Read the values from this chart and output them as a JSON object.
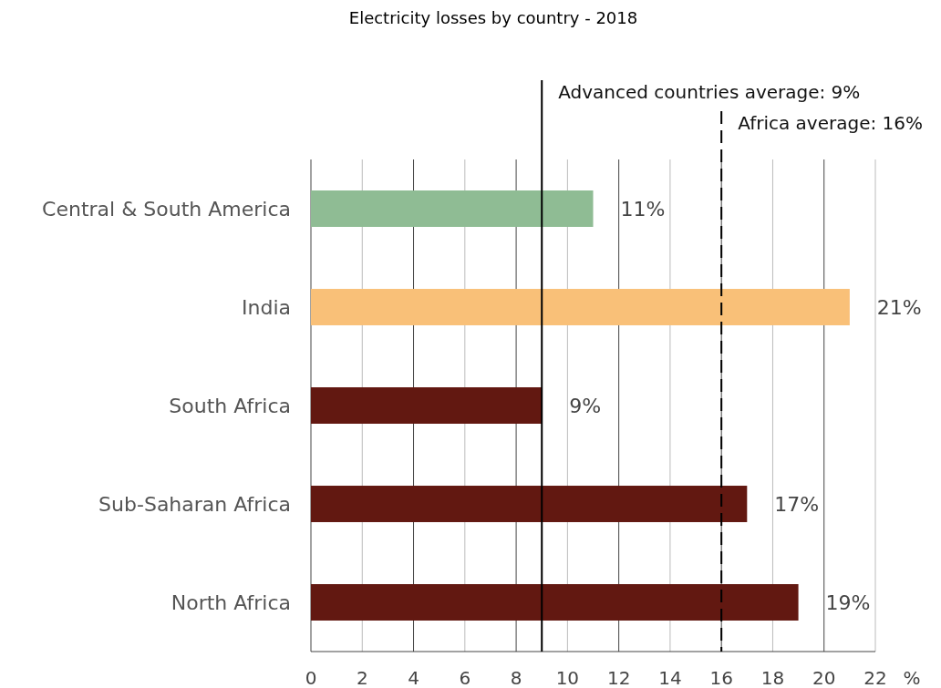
{
  "chart_data": {
    "type": "bar",
    "orientation": "horizontal",
    "title": "Electricity losses by country - 2018",
    "xlabel": "%",
    "categories": [
      "Central & South America",
      "India",
      "South Africa",
      "Sub-Saharan Africa",
      "North Africa"
    ],
    "values": [
      11,
      21,
      9,
      17,
      19
    ],
    "colors": [
      "#8fbc94",
      "#f9c078",
      "#621811",
      "#621811",
      "#621811"
    ],
    "value_labels": [
      "11%",
      "21%",
      "9%",
      "17%",
      "19%"
    ],
    "xlim": [
      0,
      22
    ],
    "xticks": [
      0,
      2,
      4,
      6,
      8,
      10,
      12,
      14,
      16,
      18,
      20,
      22
    ],
    "grid": "x",
    "ref_lines": [
      {
        "axis": "x",
        "value": 9,
        "label": "Advanced countries average: 9%",
        "color": "#000000",
        "line_style": "solid"
      },
      {
        "axis": "x",
        "value": 16,
        "label": "Africa average: 16%",
        "color": "#000000",
        "line_style": "dashed"
      }
    ]
  }
}
